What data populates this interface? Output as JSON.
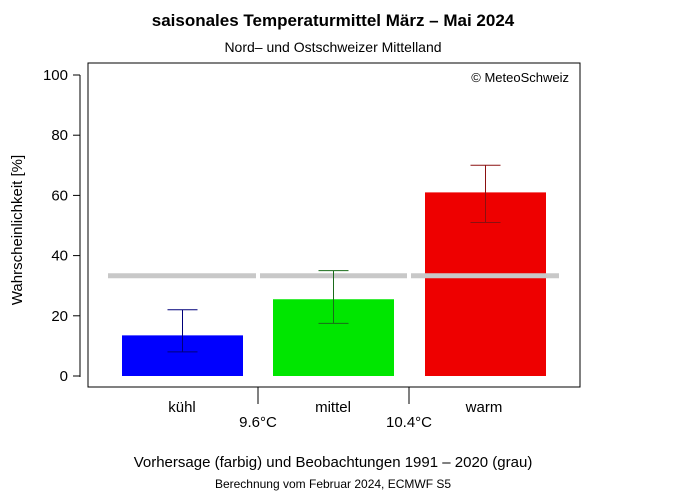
{
  "chart_data": {
    "type": "bar",
    "title": "saisonales Temperaturmittel März – Mai 2024",
    "subtitle": "Nord– und Ostschweizer Mittelland",
    "ylabel": "Wahrscheinlichkeit [%]",
    "ylim": [
      0,
      100
    ],
    "yticks": [
      0,
      20,
      40,
      60,
      80,
      100
    ],
    "categories": [
      "kühl",
      "mittel",
      "warm"
    ],
    "values": [
      13.5,
      25.5,
      61
    ],
    "error_low": [
      8,
      17.5,
      51
    ],
    "error_high": [
      22,
      35,
      70
    ],
    "colors": [
      "#0000ff",
      "#00e600",
      "#ee0000"
    ],
    "error_colors": [
      "#00007a",
      "#1a6b1a",
      "#8b1010"
    ],
    "climatology": 33.3,
    "climatology_color": "#c8c8c8",
    "thresholds": [
      "9.6°C",
      "10.4°C"
    ],
    "copyright": "© MeteoSchweiz",
    "grid": false,
    "footer_line1": "Vorhersage (farbig) und Beobachtungen 1991 – 2020 (grau)",
    "footer_line2": "Berechnung vom Februar 2024, ECMWF S5"
  }
}
